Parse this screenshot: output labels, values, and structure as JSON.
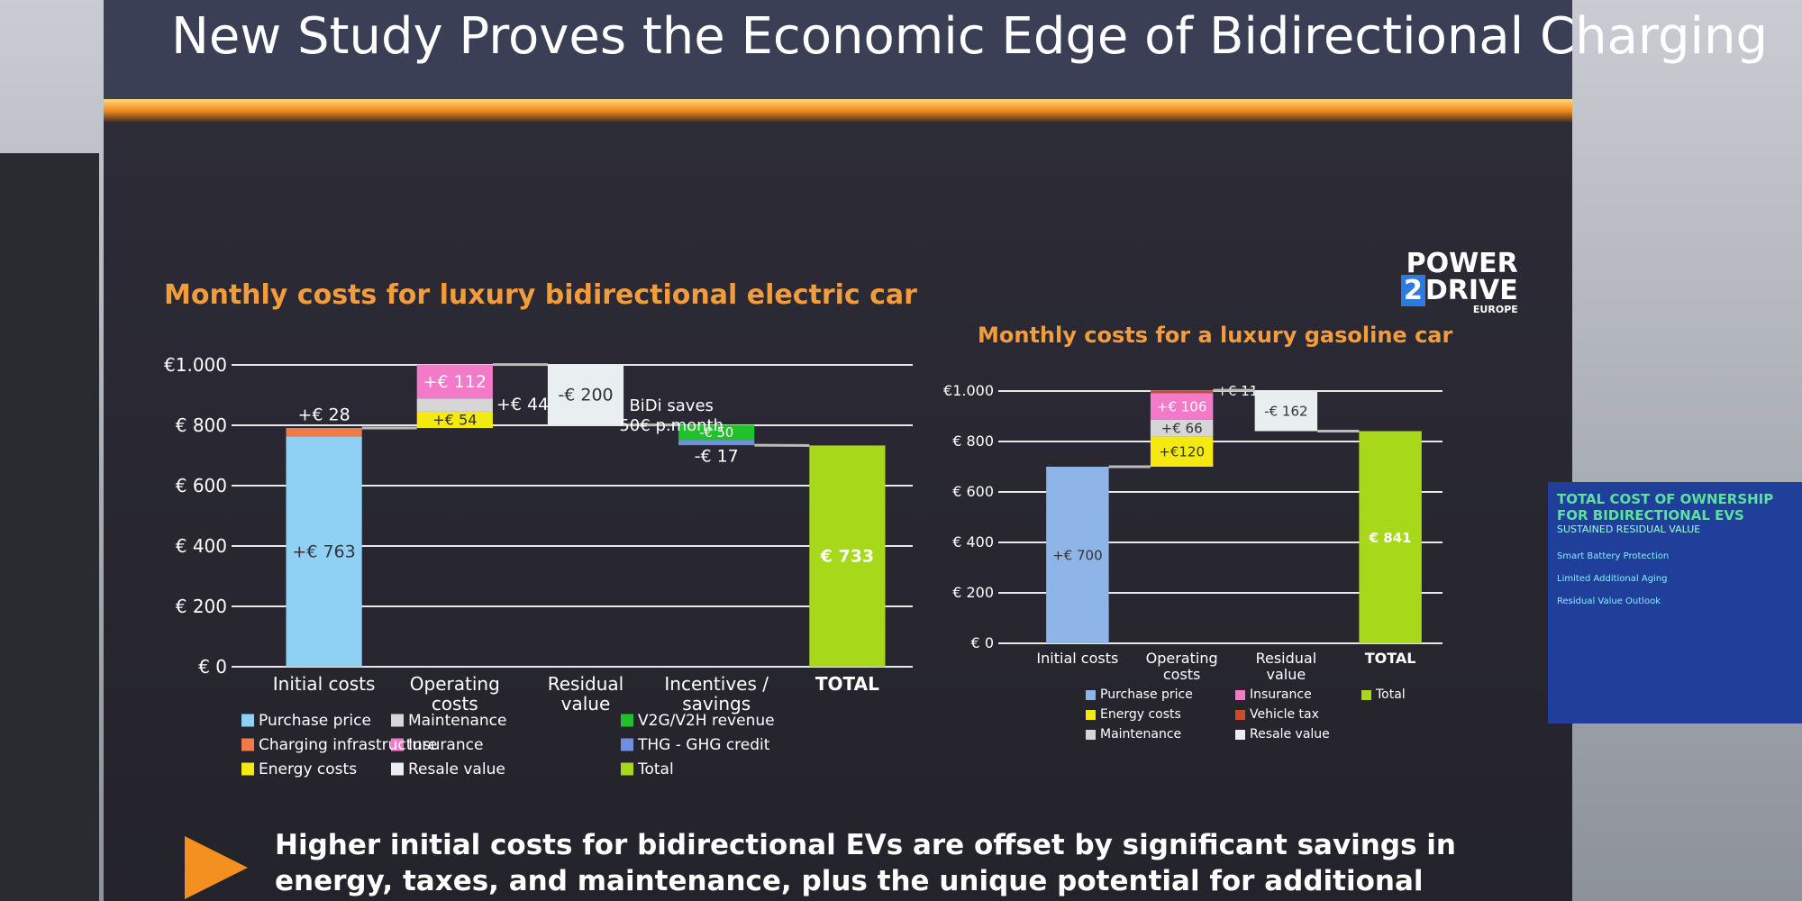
{
  "header": {
    "title": "New Study Proves the Economic Edge of Bidirectional Charging",
    "logo": [
      "POWER",
      "2",
      "DRIVE",
      "EUROPE"
    ]
  },
  "footer": {
    "text": "Higher initial costs for bidirectional EVs are offset by significant savings in energy, taxes, and maintenance, plus the unique potential for additional revenue from bidirectional charging."
  },
  "side_screen": {
    "title": "TOTAL COST OF OWNERSHIP FOR BIDIRECTIONAL EVS",
    "subtitle": "SUSTAINED RESIDUAL VALUE",
    "items": [
      "Smart Battery Protection",
      "Limited Additional Aging",
      "Residual Value Outlook"
    ]
  },
  "chart_data": [
    {
      "type": "waterfall",
      "title": "Monthly costs for luxury bidirectional electric car",
      "categories": [
        "Initial costs",
        "Operating costs",
        "Residual value",
        "Incentives / savings",
        "TOTAL"
      ],
      "ylim": [
        0,
        1000
      ],
      "yticks": [
        {
          "value": 0,
          "label": "€ 0"
        },
        {
          "value": 200,
          "label": "€ 200"
        },
        {
          "value": 400,
          "label": "€ 400"
        },
        {
          "value": 600,
          "label": "€ 600"
        },
        {
          "value": 800,
          "label": "€ 800"
        },
        {
          "value": 1000,
          "label": "€1.000"
        }
      ],
      "grid": true,
      "annotation": "BiDi saves 50€ p.month",
      "series": [
        {
          "name": "Purchase price",
          "color": "#8fd0f5",
          "values": [
            763,
            null,
            null,
            null,
            null
          ],
          "value_labels": [
            "+€ 763",
            null,
            null,
            null,
            null
          ]
        },
        {
          "name": "Charging infrastructure",
          "color": "#f07a4a",
          "values": [
            28,
            null,
            null,
            null,
            null
          ],
          "value_labels": [
            "+€ 28",
            null,
            null,
            null,
            null
          ]
        },
        {
          "name": "Energy costs",
          "color": "#f5ea10",
          "values": [
            null,
            54,
            null,
            null,
            null
          ],
          "value_labels": [
            null,
            "+€ 54",
            null,
            null,
            null
          ]
        },
        {
          "name": "Maintenance",
          "color": "#d6d6d6",
          "values": [
            null,
            44,
            null,
            null,
            null
          ],
          "value_labels": [
            null,
            "+€ 44",
            null,
            null,
            null
          ]
        },
        {
          "name": "Insurance",
          "color": "#f27ac8",
          "values": [
            null,
            112,
            null,
            null,
            null
          ],
          "value_labels": [
            null,
            "+€ 112",
            null,
            null,
            null
          ]
        },
        {
          "name": "Resale value",
          "color": "#e9eef0",
          "values": [
            null,
            null,
            -200,
            null,
            null
          ],
          "value_labels": [
            null,
            null,
            "-€ 200",
            null,
            null
          ]
        },
        {
          "name": "V2G/V2H revenue",
          "color": "#22c02a",
          "values": [
            null,
            null,
            null,
            -50,
            null
          ],
          "value_labels": [
            null,
            null,
            null,
            "-€ 50",
            null
          ]
        },
        {
          "name": "THG - GHG credit",
          "color": "#6f8fe0",
          "values": [
            null,
            null,
            null,
            -17,
            null
          ],
          "value_labels": [
            null,
            null,
            null,
            "-€ 17",
            null
          ]
        },
        {
          "name": "Total",
          "color": "#a8d81a",
          "total": true,
          "values": [
            null,
            null,
            null,
            null,
            733
          ],
          "value_labels": [
            null,
            null,
            null,
            null,
            "€ 733"
          ]
        }
      ]
    },
    {
      "type": "waterfall",
      "title": "Monthly costs for a luxury gasoline car",
      "categories": [
        "Initial costs",
        "Operating costs",
        "Residual value",
        "TOTAL"
      ],
      "ylim": [
        0,
        1000
      ],
      "yticks": [
        {
          "value": 0,
          "label": "€ 0"
        },
        {
          "value": 200,
          "label": "€ 200"
        },
        {
          "value": 400,
          "label": "€ 400"
        },
        {
          "value": 600,
          "label": "€ 600"
        },
        {
          "value": 800,
          "label": "€ 800"
        },
        {
          "value": 1000,
          "label": "€1.000"
        }
      ],
      "grid": true,
      "series": [
        {
          "name": "Purchase price",
          "color": "#8fb4e8",
          "values": [
            700,
            null,
            null,
            null
          ],
          "value_labels": [
            "+€ 700",
            null,
            null,
            null
          ]
        },
        {
          "name": "Energy costs",
          "color": "#f5ea10",
          "values": [
            null,
            120,
            null,
            null
          ],
          "value_labels": [
            null,
            "+€120",
            null,
            null
          ]
        },
        {
          "name": "Maintenance",
          "color": "#d6d6d6",
          "values": [
            null,
            66,
            null,
            null
          ],
          "value_labels": [
            null,
            "+€ 66",
            null,
            null
          ]
        },
        {
          "name": "Insurance",
          "color": "#f27ac8",
          "values": [
            null,
            106,
            null,
            null
          ],
          "value_labels": [
            null,
            "+€ 106",
            null,
            null
          ]
        },
        {
          "name": "Vehicle tax",
          "color": "#d04a2a",
          "values": [
            null,
            11,
            null,
            null
          ],
          "value_labels": [
            null,
            "+€ 11",
            null,
            null
          ]
        },
        {
          "name": "Resale value",
          "color": "#e9eef0",
          "values": [
            null,
            null,
            -162,
            null
          ],
          "value_labels": [
            null,
            null,
            "-€ 162",
            null
          ]
        },
        {
          "name": "Total",
          "color": "#a8d81a",
          "total": true,
          "values": [
            null,
            null,
            null,
            841
          ],
          "value_labels": [
            null,
            null,
            null,
            "€ 841"
          ]
        }
      ]
    }
  ]
}
